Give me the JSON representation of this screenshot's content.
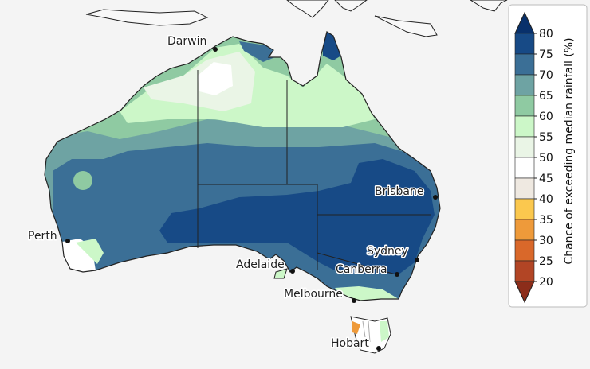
{
  "map": {
    "cities": [
      {
        "name": "Darwin"
      },
      {
        "name": "Perth"
      },
      {
        "name": "Brisbane"
      },
      {
        "name": "Adelaide"
      },
      {
        "name": "Sydney"
      },
      {
        "name": "Canberra"
      },
      {
        "name": "Melbourne"
      },
      {
        "name": "Hobart"
      }
    ]
  },
  "legend": {
    "title": "Chance of exceeding median rainfall (%)",
    "ticks": [
      "80",
      "75",
      "70",
      "65",
      "60",
      "55",
      "50",
      "45",
      "40",
      "35",
      "30",
      "25",
      "20"
    ],
    "colors": {
      "gt80": "#08306b",
      "75_80": "#174a86",
      "70_75": "#3b6f96",
      "65_70": "#6ea3a3",
      "60_65": "#8fcaa2",
      "55_60": "#ccf7c8",
      "50_55": "#eaf5e6",
      "45_50": "#ffffff",
      "40_45": "#efe9e1",
      "35_40": "#fbc84e",
      "30_35": "#ee9a3a",
      "25_30": "#d9682a",
      "20_25": "#b24525",
      "lt20": "#8c2d1a"
    }
  }
}
